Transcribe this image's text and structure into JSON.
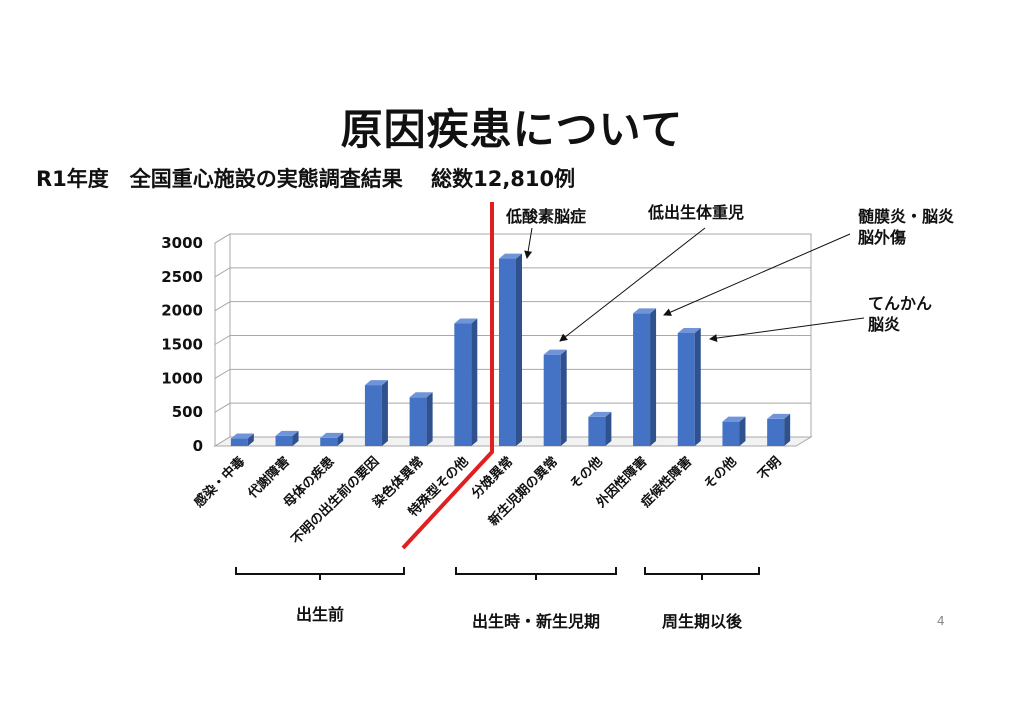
{
  "page": {
    "title": "原因疾患について",
    "subtitle": "R1年度　全国重心施設の実態調査結果　 総数12,810例",
    "page_number": "4"
  },
  "chart_data": {
    "type": "bar",
    "categories": [
      "感染・中毒",
      "代謝障害",
      "母体の疾患",
      "不明の出生前の要因",
      "染色体異常",
      "特殊型その他",
      "分娩異常",
      "新生児期の異常",
      "その他",
      "外因性障害",
      "症候性障害",
      "その他",
      "不明"
    ],
    "values": [
      110,
      150,
      120,
      900,
      720,
      1810,
      2770,
      1350,
      430,
      1960,
      1670,
      360,
      400
    ],
    "ylim": [
      0,
      3000
    ],
    "yticks": [
      0,
      500,
      1000,
      1500,
      2000,
      2500,
      3000
    ],
    "grid": true,
    "bar_color": "#4472C4",
    "divider_color": "#E02020",
    "annotations": [
      {
        "lines": [
          "低酸素脳症"
        ],
        "target": 6
      },
      {
        "lines": [
          "低出生体重児"
        ],
        "target": 7
      },
      {
        "lines": [
          "髄膜炎・脳炎",
          "脳外傷"
        ],
        "target": 9
      },
      {
        "lines": [
          "てんかん",
          "脳炎"
        ],
        "target": 10
      }
    ],
    "groups": [
      {
        "label": "出生前",
        "from": 0,
        "to": 5
      },
      {
        "label": "出生時・新生児期",
        "from": 6,
        "to": 8
      },
      {
        "label": "周生期以後",
        "from": 9,
        "to": 12
      }
    ]
  }
}
